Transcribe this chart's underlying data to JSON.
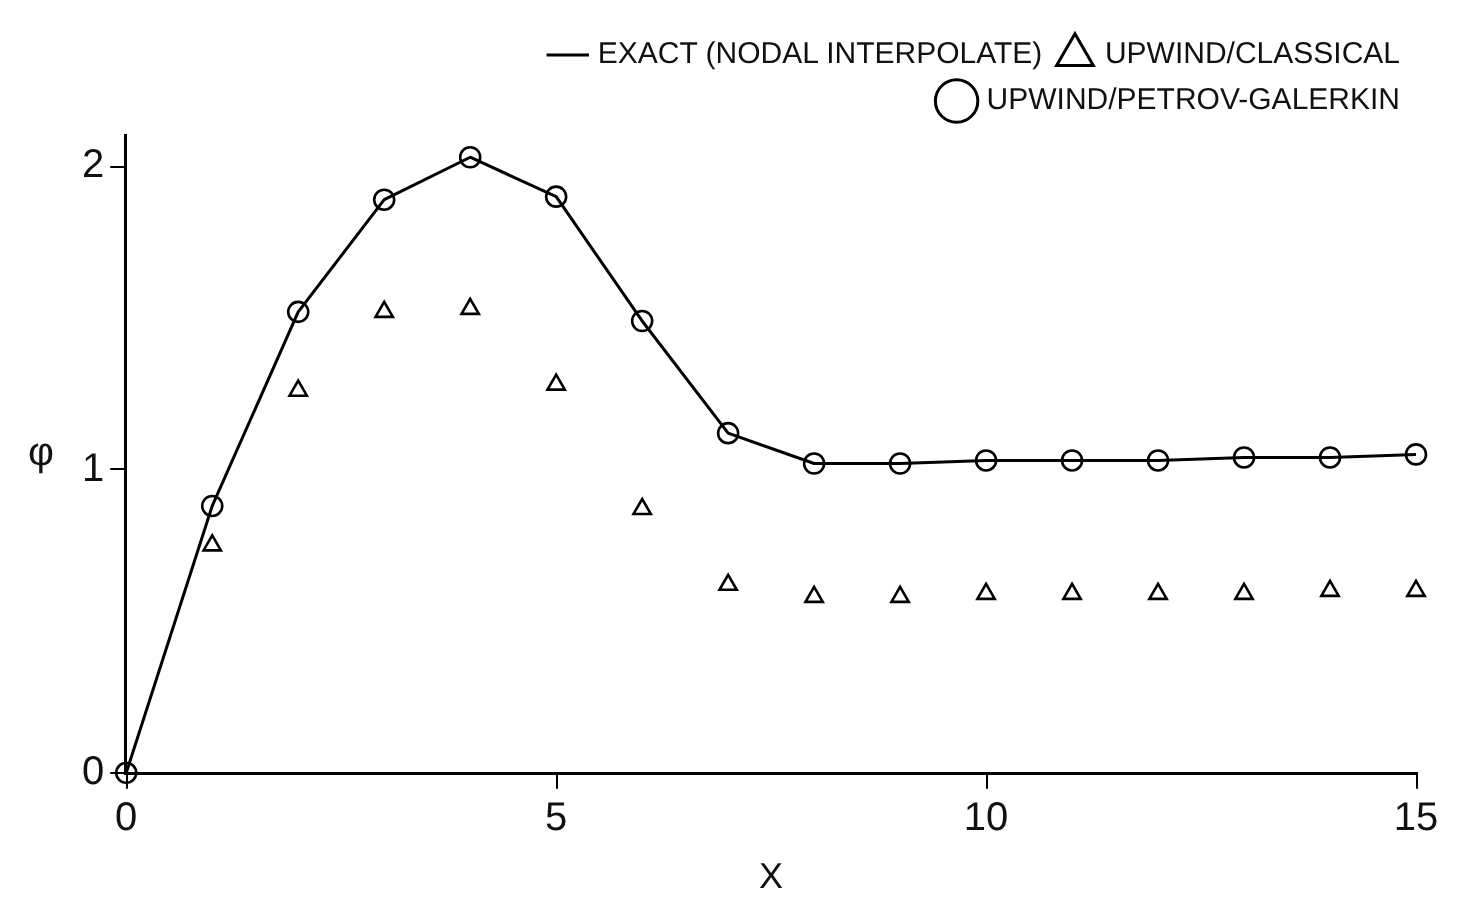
{
  "chart_data": {
    "type": "line",
    "xlabel": "X",
    "ylabel": "φ",
    "x": [
      0,
      1,
      2,
      3,
      4,
      5,
      6,
      7,
      8,
      9,
      10,
      11,
      12,
      13,
      14,
      15
    ],
    "series": [
      {
        "name": "EXACT (NODAL INTERPOLATE)",
        "color": "#000000",
        "marker": "none",
        "values": [
          0,
          0.88,
          1.52,
          1.89,
          2.03,
          1.9,
          1.49,
          1.12,
          1.02,
          1.02,
          1.03,
          1.03,
          1.03,
          1.04,
          1.04,
          1.05
        ]
      },
      {
        "name": "UPWIND/CLASSICAL",
        "type": "scatter",
        "color": "#000000",
        "marker": "triangle",
        "values": [
          null,
          0.75,
          1.26,
          1.52,
          1.53,
          1.28,
          0.87,
          0.62,
          0.58,
          0.58,
          0.59,
          0.59,
          0.59,
          0.59,
          0.6,
          0.6
        ]
      },
      {
        "name": "UPWIND/PETROV-GALERKIN",
        "type": "scatter",
        "color": "#000000",
        "marker": "circle",
        "values": [
          0,
          0.88,
          1.52,
          1.89,
          2.03,
          1.9,
          1.49,
          1.12,
          1.02,
          1.02,
          1.03,
          1.03,
          1.03,
          1.04,
          1.04,
          1.05
        ]
      }
    ],
    "xlim": [
      0,
      15
    ],
    "xticks": [
      0,
      5,
      10,
      15
    ],
    "ylim": [
      0,
      2.1
    ],
    "yticks": [
      0,
      1,
      2
    ],
    "grid": false,
    "legend": "top right"
  }
}
